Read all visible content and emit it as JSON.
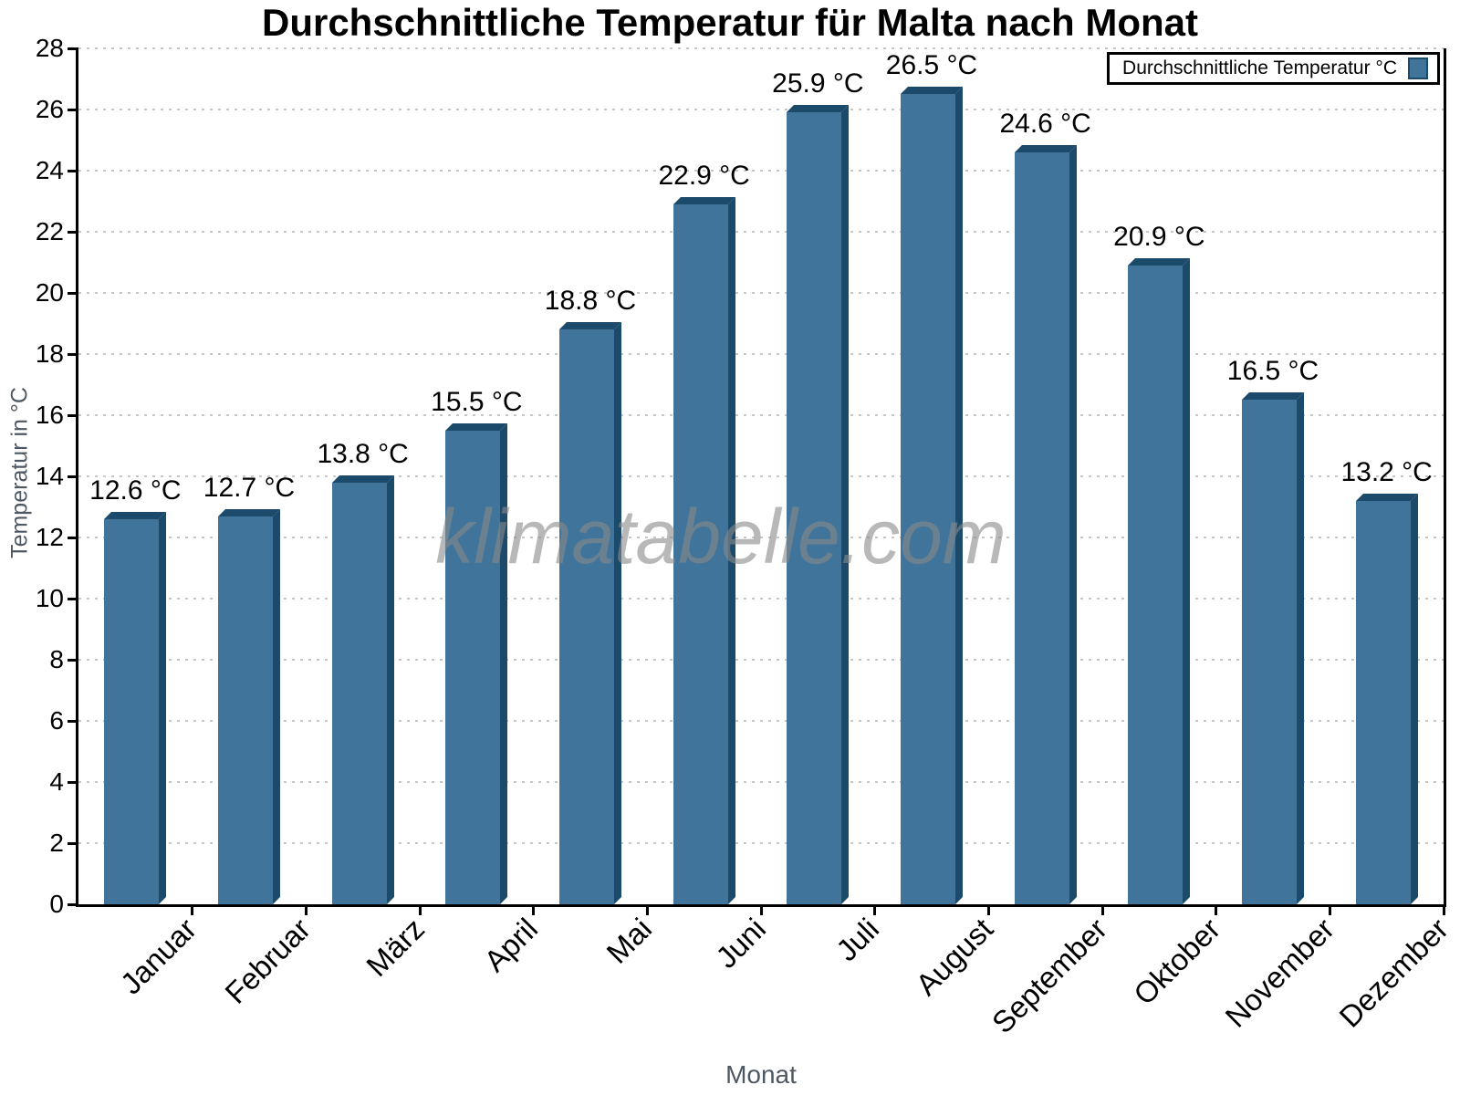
{
  "title": "Durchschnittliche Temperatur für Malta nach Monat",
  "legend": {
    "label": "Durchschnittliche Temperatur °C"
  },
  "watermark": "klimatabelle.com",
  "chart_data": {
    "type": "bar",
    "title": "Durchschnittliche Temperatur für Malta nach Monat",
    "xlabel": "Monat",
    "ylabel": "Temperatur in °C",
    "ylim": [
      0,
      28
    ],
    "ytick_step": 2,
    "grid": "horizontal dotted",
    "legend_position": "top-right",
    "legend_label": "Durchschnittliche Temperatur °C",
    "categories": [
      "Januar",
      "Februar",
      "März",
      "April",
      "Mai",
      "Juni",
      "Juli",
      "August",
      "September",
      "Oktober",
      "November",
      "Dezember"
    ],
    "values": [
      12.6,
      12.7,
      13.8,
      15.5,
      18.8,
      22.9,
      25.9,
      26.5,
      24.6,
      20.9,
      16.5,
      13.2
    ],
    "value_labels": [
      "12.6 °C",
      "12.7 °C",
      "13.8 °C",
      "15.5 °C",
      "18.8 °C",
      "22.9 °C",
      "25.9 °C",
      "26.5 °C",
      "24.6 °C",
      "20.9 °C",
      "16.5 °C",
      "13.2 °C"
    ],
    "colors": {
      "bar_front": "#41749a",
      "bar_shade": "#1b4a6a",
      "grid": "#c6c6c6",
      "axis": "#000000",
      "label_text": "#000000",
      "axis_title_text": "#4d5863",
      "watermark": "#8a8a8a"
    }
  }
}
